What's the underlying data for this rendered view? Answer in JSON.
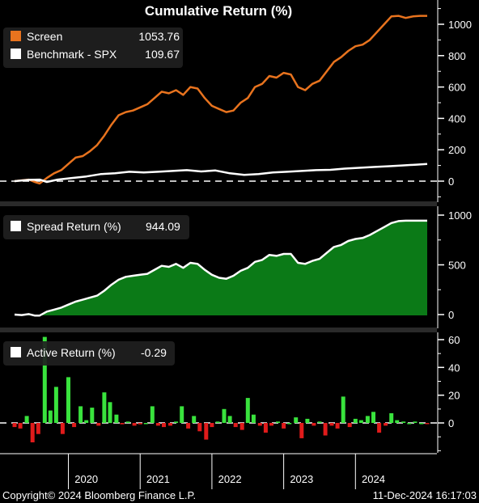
{
  "chart_data": [
    {
      "type": "line",
      "title": "Cumulative Return (%)",
      "ylim": [
        -30,
        1080
      ],
      "yticks": [
        0,
        200,
        400,
        600,
        800,
        1000
      ],
      "grid": false,
      "legend_position": "top-left",
      "series": [
        {
          "name": "Screen",
          "last_label": "1053.76",
          "color": "#E8731E",
          "x": [
            2019.0,
            2019.1,
            2019.2,
            2019.28,
            2019.35,
            2019.45,
            2019.55,
            2019.65,
            2019.75,
            2019.85,
            2019.95,
            2020.05,
            2020.15,
            2020.25,
            2020.35,
            2020.45,
            2020.55,
            2020.65,
            2020.75,
            2020.85,
            2020.95,
            2021.05,
            2021.15,
            2021.25,
            2021.35,
            2021.45,
            2021.55,
            2021.65,
            2021.75,
            2021.85,
            2021.95,
            2022.05,
            2022.15,
            2022.25,
            2022.35,
            2022.45,
            2022.55,
            2022.65,
            2022.75,
            2022.85,
            2022.95,
            2023.05,
            2023.15,
            2023.25,
            2023.35,
            2023.45,
            2023.55,
            2023.65,
            2023.75,
            2023.85,
            2023.95,
            2024.05,
            2024.15,
            2024.25,
            2024.35,
            2024.45,
            2024.55,
            2024.65,
            2024.75
          ],
          "values": [
            0,
            5,
            10,
            -5,
            -15,
            20,
            50,
            70,
            110,
            150,
            160,
            190,
            230,
            290,
            360,
            420,
            440,
            450,
            470,
            490,
            530,
            570,
            560,
            580,
            550,
            600,
            590,
            530,
            480,
            460,
            440,
            450,
            500,
            530,
            600,
            620,
            670,
            660,
            690,
            680,
            600,
            580,
            620,
            640,
            700,
            760,
            790,
            830,
            860,
            870,
            900,
            950,
            1000,
            1050,
            1053.76,
            1040,
            1050,
            1053.76,
            1053.76
          ]
        },
        {
          "name": "Benchmark - SPX",
          "last_label": "109.67",
          "color": "#FFFFFF",
          "x": [
            2019.0,
            2019.2,
            2019.35,
            2019.45,
            2019.6,
            2019.8,
            2020.0,
            2020.2,
            2020.4,
            2020.6,
            2020.8,
            2021.0,
            2021.2,
            2021.4,
            2021.6,
            2021.8,
            2022.0,
            2022.2,
            2022.4,
            2022.6,
            2022.8,
            2023.0,
            2023.2,
            2023.4,
            2023.6,
            2023.8,
            2024.0,
            2024.2,
            2024.4,
            2024.6,
            2024.75
          ],
          "values": [
            0,
            8,
            10,
            -5,
            10,
            20,
            30,
            45,
            50,
            60,
            55,
            60,
            65,
            70,
            62,
            68,
            50,
            40,
            45,
            55,
            60,
            65,
            70,
            72,
            80,
            85,
            90,
            95,
            100,
            105,
            109.67
          ]
        }
      ]
    },
    {
      "type": "area",
      "ylim": [
        -30,
        1020
      ],
      "yticks": [
        0,
        500,
        1000
      ],
      "grid": false,
      "legend_position": "top-left",
      "series": [
        {
          "name": "Spread Return (%)",
          "last_label": "944.09",
          "color": "#0B7A17",
          "x": [
            2019.0,
            2019.1,
            2019.2,
            2019.28,
            2019.35,
            2019.45,
            2019.55,
            2019.65,
            2019.75,
            2019.85,
            2019.95,
            2020.05,
            2020.15,
            2020.25,
            2020.35,
            2020.45,
            2020.55,
            2020.65,
            2020.75,
            2020.85,
            2020.95,
            2021.05,
            2021.15,
            2021.25,
            2021.35,
            2021.45,
            2021.55,
            2021.65,
            2021.75,
            2021.85,
            2021.95,
            2022.05,
            2022.15,
            2022.25,
            2022.35,
            2022.45,
            2022.55,
            2022.65,
            2022.75,
            2022.85,
            2022.95,
            2023.05,
            2023.15,
            2023.25,
            2023.35,
            2023.45,
            2023.55,
            2023.65,
            2023.75,
            2023.85,
            2023.95,
            2024.05,
            2024.15,
            2024.25,
            2024.35,
            2024.45,
            2024.55,
            2024.65,
            2024.75
          ],
          "values": [
            0,
            -5,
            5,
            -10,
            -10,
            30,
            50,
            70,
            100,
            130,
            150,
            170,
            190,
            240,
            300,
            350,
            380,
            390,
            400,
            410,
            450,
            490,
            480,
            510,
            470,
            520,
            510,
            450,
            400,
            370,
            360,
            390,
            440,
            470,
            530,
            550,
            600,
            590,
            610,
            610,
            520,
            510,
            540,
            560,
            620,
            680,
            700,
            740,
            760,
            770,
            800,
            840,
            880,
            920,
            940,
            944.09,
            944.09,
            944.09,
            944.09
          ]
        }
      ]
    },
    {
      "type": "bar",
      "ylim": [
        -30,
        62
      ],
      "yticks": [
        0,
        20,
        40,
        60
      ],
      "grid": false,
      "legend_position": "top-left",
      "series": [
        {
          "name": "Active Return (%)",
          "last_label": "-0.29",
          "positive_color": "#39E33D",
          "negative_color": "#E01B1B",
          "x": [
            2019.0,
            2019.08,
            2019.17,
            2019.25,
            2019.33,
            2019.42,
            2019.5,
            2019.58,
            2019.67,
            2019.75,
            2019.83,
            2019.92,
            2020.0,
            2020.08,
            2020.17,
            2020.25,
            2020.33,
            2020.42,
            2020.5,
            2020.58,
            2020.67,
            2020.75,
            2020.83,
            2020.92,
            2021.0,
            2021.08,
            2021.17,
            2021.25,
            2021.33,
            2021.42,
            2021.5,
            2021.58,
            2021.67,
            2021.75,
            2021.83,
            2021.92,
            2022.0,
            2022.08,
            2022.17,
            2022.25,
            2022.33,
            2022.42,
            2022.5,
            2022.58,
            2022.67,
            2022.75,
            2022.83,
            2022.92,
            2023.0,
            2023.08,
            2023.17,
            2023.25,
            2023.33,
            2023.42,
            2023.5,
            2023.58,
            2023.67,
            2023.75,
            2023.83,
            2023.92,
            2024.0,
            2024.08,
            2024.17,
            2024.25,
            2024.33,
            2024.42,
            2024.5,
            2024.58,
            2024.67,
            2024.75
          ],
          "values": [
            -3,
            -4,
            5,
            -14,
            -8,
            62,
            9,
            26,
            -8,
            33,
            -3,
            12,
            2,
            11,
            -2,
            22,
            15,
            6,
            -1,
            1,
            -2,
            -1,
            0,
            12,
            -2,
            -3,
            -2,
            1,
            12,
            -4,
            5,
            -6,
            -12,
            -3,
            1,
            10,
            5,
            -3,
            -5,
            18,
            6,
            -2,
            -7,
            -2,
            1,
            -4,
            0,
            4,
            -11,
            3,
            -2,
            1,
            -9,
            -2,
            -4,
            19,
            -3,
            3,
            2,
            5,
            8,
            -7,
            -2,
            7,
            2,
            1,
            0,
            1,
            0,
            -0.29
          ]
        }
      ]
    }
  ],
  "x_axis": {
    "xlim": [
      2019.0,
      2024.85
    ],
    "tick_labels": [
      "2020",
      "2021",
      "2022",
      "2023",
      "2024"
    ],
    "label_positions": [
      2020.0,
      2021.0,
      2022.0,
      2023.0,
      2024.0
    ],
    "year_boundaries": [
      2019.75,
      2020.75,
      2021.75,
      2022.75,
      2023.75
    ]
  },
  "footer": {
    "copyright": "Copyright© 2024 Bloomberg Finance L.P.",
    "timestamp": "11-Dec-2024 16:17:03"
  }
}
